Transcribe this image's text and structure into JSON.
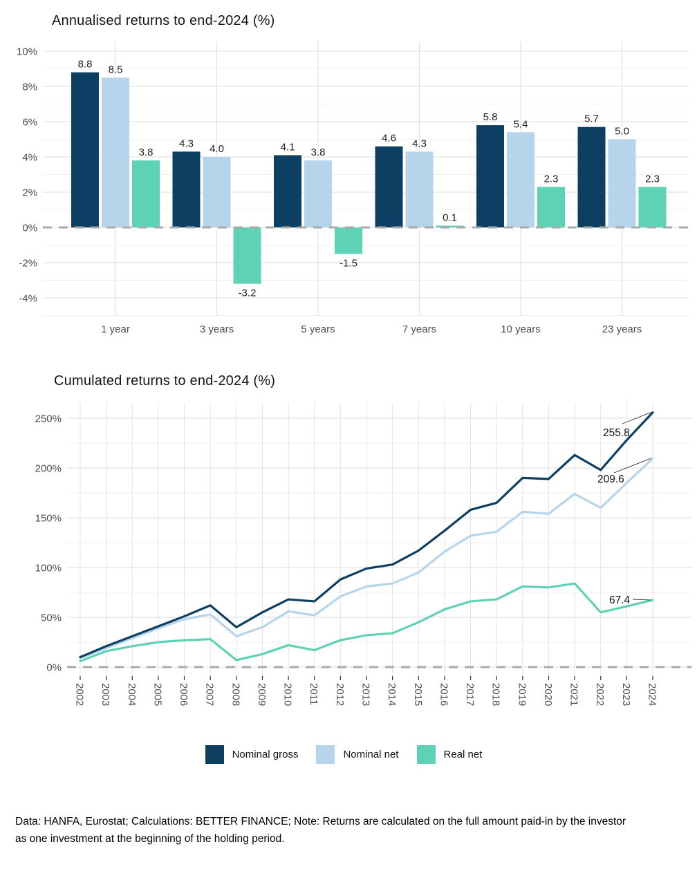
{
  "theme": {
    "axis_text": "#4d4d4d",
    "value_text": "#1f1f1f",
    "grid_major": "#e3e3e3",
    "grid_minor": "#f1f1f1",
    "zero_line": "#a9a9a9",
    "tick": "#333333",
    "navy": "#0c3f61",
    "light_blue": "#b6d5ea",
    "teal": "#5ed2b5"
  },
  "legend": {
    "items": [
      "Nominal gross",
      "Nominal net",
      "Real net"
    ]
  },
  "footer": {
    "text": "Data: HANFA, Eurostat; Calculations: BETTER FINANCE; Note: Returns are calculated on the full amount paid-in by the investor as one investment at the beginning of the holding period."
  },
  "chart_data": [
    {
      "type": "bar",
      "title": "Annualised returns to end-2024 (%)",
      "categories": [
        "1 year",
        "3 years",
        "5 years",
        "7 years",
        "10 years",
        "23 years"
      ],
      "series": [
        {
          "name": "Nominal gross",
          "color": "#0c3f61",
          "values": [
            8.8,
            4.3,
            4.1,
            4.6,
            5.8,
            5.7
          ]
        },
        {
          "name": "Nominal net",
          "color": "#b6d5ea",
          "values": [
            8.5,
            4.0,
            3.8,
            4.3,
            5.4,
            5.0
          ]
        },
        {
          "name": "Real net",
          "color": "#5ed2b5",
          "values": [
            3.8,
            -3.2,
            -1.5,
            0.1,
            2.3,
            2.3
          ]
        }
      ],
      "ylabel": "",
      "xlabel": "",
      "ylim": [
        -5,
        10.5
      ],
      "y_ticks": [
        10,
        8,
        6,
        4,
        2,
        0,
        -2,
        -4
      ],
      "y_minor": [
        9,
        7,
        5,
        3,
        1,
        -1,
        -3,
        -5
      ],
      "zero_line_dashed": true,
      "value_labels": true,
      "grid": true
    },
    {
      "type": "line",
      "title": "Cumulated returns to end-2024 (%)",
      "x": [
        2002,
        2003,
        2004,
        2005,
        2006,
        2007,
        2008,
        2009,
        2010,
        2011,
        2012,
        2013,
        2014,
        2015,
        2016,
        2017,
        2018,
        2019,
        2020,
        2021,
        2022,
        2023,
        2024
      ],
      "series": [
        {
          "name": "Nominal gross",
          "color": "#0c3f61",
          "values": [
            10,
            21,
            31,
            41,
            51,
            62,
            40,
            55,
            68,
            66,
            88,
            99,
            103,
            117,
            137,
            158,
            165,
            190,
            189,
            213,
            198,
            228,
            255.8
          ]
        },
        {
          "name": "Nominal net",
          "color": "#b6d5ea",
          "values": [
            9,
            19,
            29,
            39,
            48,
            53,
            31,
            40,
            56,
            52,
            71,
            81,
            84,
            95,
            116,
            132,
            136,
            156,
            154,
            174,
            160,
            185,
            209.6
          ]
        },
        {
          "name": "Real net",
          "color": "#5ed2b5",
          "values": [
            6,
            16,
            21,
            25,
            27,
            28,
            7,
            13,
            22,
            17,
            27,
            32,
            34,
            45,
            58,
            66,
            68,
            81,
            80,
            84,
            55,
            61,
            67.4
          ]
        }
      ],
      "end_labels": [
        "255.8",
        "209.6",
        "67.4"
      ],
      "ylabel": "",
      "xlabel": "",
      "ylim": [
        -13,
        264
      ],
      "y_ticks": [
        0,
        50,
        100,
        150,
        200,
        250
      ],
      "y_minor": [
        25,
        75,
        125,
        175,
        225
      ],
      "zero_line_dashed": true,
      "legend_position": "bottom",
      "grid": true
    }
  ]
}
